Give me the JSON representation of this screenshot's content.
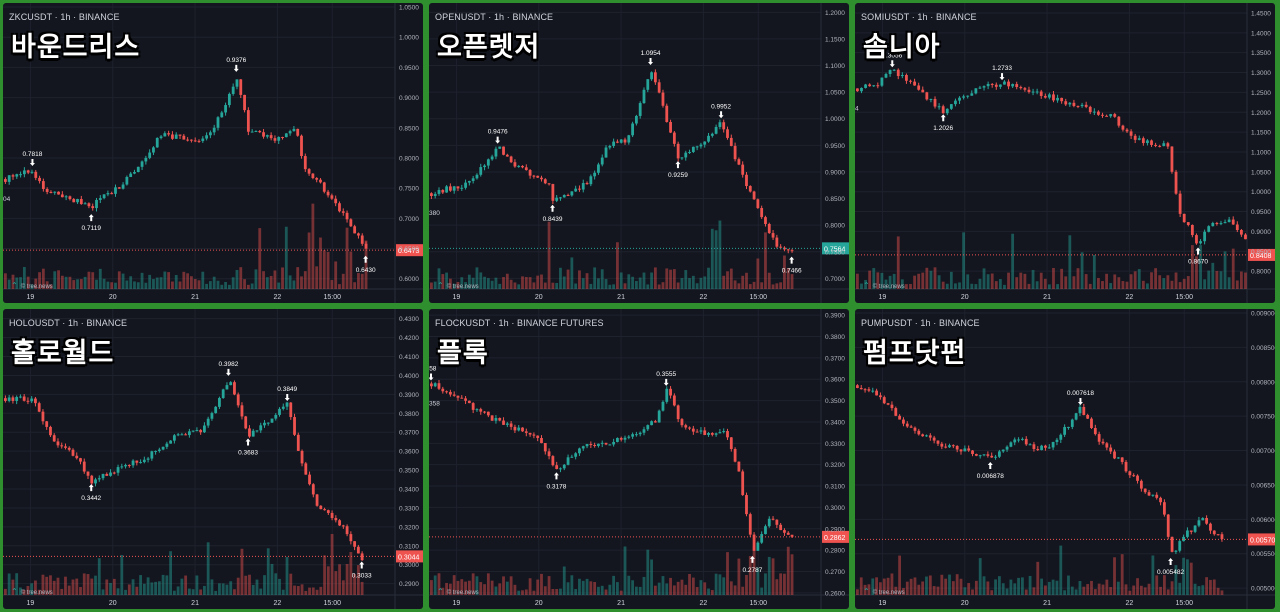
{
  "brand_text": "© tree.news",
  "colors": {
    "up": "#26a69a",
    "down": "#ef5350",
    "bg": "#13161f",
    "grid": "#1e222d",
    "text": "#b2b5be"
  },
  "chart_data": [
    {
      "type": "candlestick",
      "title": "ZKCUSDT · 1h · BINANCE",
      "korean_title": "바운드리스",
      "x_ticks": [
        "19",
        "20",
        "21",
        "22",
        "15:00"
      ],
      "y_ticks": [
        "1.0500",
        "1.0000",
        "0.9500",
        "0.9000",
        "0.8500",
        "0.8000",
        "0.7500",
        "0.7000",
        "0.6500",
        "0.6000"
      ],
      "ylim": [
        0.583,
        1.05
      ],
      "last_price": "0.6473",
      "last_price_value": 0.6473,
      "last_color": "#ef5350",
      "left_edge_label": "04",
      "path": [
        [
          0,
          0.765
        ],
        [
          0.07,
          0.78
        ],
        [
          0.1,
          0.745
        ],
        [
          0.22,
          0.72
        ],
        [
          0.3,
          0.758
        ],
        [
          0.35,
          0.795
        ],
        [
          0.4,
          0.84
        ],
        [
          0.5,
          0.825
        ],
        [
          0.55,
          0.87
        ],
        [
          0.59,
          0.935
        ],
        [
          0.62,
          0.845
        ],
        [
          0.7,
          0.83
        ],
        [
          0.74,
          0.85
        ],
        [
          0.76,
          0.79
        ],
        [
          0.86,
          0.71
        ],
        [
          0.92,
          0.647
        ]
      ],
      "annotations": [
        {
          "label": "0.7818",
          "x": 0.07,
          "value": 0.7818,
          "pos": "above"
        },
        {
          "label": "0.7119",
          "x": 0.22,
          "value": 0.7119,
          "pos": "below"
        },
        {
          "label": "0.9376",
          "x": 0.59,
          "value": 0.9376,
          "pos": "above"
        },
        {
          "label": "0.6430",
          "x": 0.92,
          "value": 0.643,
          "pos": "below"
        }
      ]
    },
    {
      "type": "candlestick",
      "title": "OPENUSDT · 1h · BINANCE",
      "korean_title": "오픈렛저",
      "x_ticks": [
        "19",
        "20",
        "21",
        "22",
        "15:00"
      ],
      "y_ticks": [
        "1.2000",
        "1.1500",
        "1.1000",
        "1.0500",
        "1.0000",
        "0.9500",
        "0.9000",
        "0.8500",
        "0.8000",
        "0.7500",
        "0.7000"
      ],
      "ylim": [
        0.68,
        1.21
      ],
      "last_price": "0.7564",
      "last_price_value": 0.7564,
      "last_color": "#26a69a",
      "left_edge_label": "380",
      "path": [
        [
          0,
          0.86
        ],
        [
          0.1,
          0.88
        ],
        [
          0.17,
          0.9476
        ],
        [
          0.22,
          0.91
        ],
        [
          0.3,
          0.88
        ],
        [
          0.31,
          0.8439
        ],
        [
          0.4,
          0.88
        ],
        [
          0.45,
          0.95
        ],
        [
          0.5,
          0.96
        ],
        [
          0.52,
          1.0
        ],
        [
          0.56,
          1.0954
        ],
        [
          0.6,
          1.0
        ],
        [
          0.63,
          0.9259
        ],
        [
          0.7,
          0.96
        ],
        [
          0.74,
          0.9952
        ],
        [
          0.8,
          0.88
        ],
        [
          0.88,
          0.76
        ],
        [
          0.92,
          0.7466
        ]
      ],
      "annotations": [
        {
          "label": "0.9476",
          "x": 0.17,
          "value": 0.9476,
          "pos": "above"
        },
        {
          "label": "0.8439",
          "x": 0.31,
          "value": 0.8439,
          "pos": "below"
        },
        {
          "label": "1.0954",
          "x": 0.56,
          "value": 1.0954,
          "pos": "above"
        },
        {
          "label": "0.9259",
          "x": 0.63,
          "value": 0.9259,
          "pos": "below"
        },
        {
          "label": "0.9952",
          "x": 0.74,
          "value": 0.9952,
          "pos": "above"
        },
        {
          "label": "0.7466",
          "x": 0.92,
          "value": 0.7466,
          "pos": "below"
        }
      ]
    },
    {
      "type": "candlestick",
      "title": "SOMIUSDT · 1h · BINANCE",
      "korean_title": "솜니아",
      "x_ticks": [
        "19",
        "20",
        "21",
        "22",
        "15:00"
      ],
      "y_ticks": [
        "1.4500",
        "1.4000",
        "1.3500",
        "1.3000",
        "1.2500",
        "1.2000",
        "1.1500",
        "1.1000",
        "1.0500",
        "1.0000",
        "0.9500",
        "0.9000",
        "0.8500",
        "0.8000"
      ],
      "ylim": [
        0.755,
        1.465
      ],
      "last_price": "0.8408",
      "last_price_value": 0.8408,
      "last_color": "#ef5350",
      "left_edge_label": "4",
      "path": [
        [
          0,
          1.26
        ],
        [
          0.05,
          1.27
        ],
        [
          0.09,
          1.3056
        ],
        [
          0.14,
          1.27
        ],
        [
          0.22,
          1.2026
        ],
        [
          0.3,
          1.26
        ],
        [
          0.37,
          1.2733
        ],
        [
          0.45,
          1.25
        ],
        [
          0.55,
          1.22
        ],
        [
          0.65,
          1.19
        ],
        [
          0.7,
          1.14
        ],
        [
          0.75,
          1.12
        ],
        [
          0.79,
          1.12
        ],
        [
          0.82,
          0.95
        ],
        [
          0.87,
          0.867
        ],
        [
          0.9,
          0.92
        ],
        [
          0.95,
          0.93
        ],
        [
          0.99,
          0.88
        ]
      ],
      "annotations": [
        {
          "label": "1.3056",
          "x": 0.09,
          "value": 1.3056,
          "pos": "above"
        },
        {
          "label": "1.2026",
          "x": 0.22,
          "value": 1.2026,
          "pos": "below"
        },
        {
          "label": "1.2733",
          "x": 0.37,
          "value": 1.2733,
          "pos": "above"
        },
        {
          "label": "0.8670",
          "x": 0.87,
          "value": 0.867,
          "pos": "below"
        }
      ]
    },
    {
      "type": "candlestick",
      "title": "HOLOUSDT · 1h · BINANCE",
      "korean_title": "홀로월드",
      "x_ticks": [
        "19",
        "20",
        "21",
        "22",
        "15:00"
      ],
      "y_ticks": [
        "0.4300",
        "0.4200",
        "0.4100",
        "0.4000",
        "0.3900",
        "0.3800",
        "0.3700",
        "0.3600",
        "0.3500",
        "0.3400",
        "0.3300",
        "0.3200",
        "0.3100",
        "0.3000",
        "0.2900"
      ],
      "ylim": [
        0.284,
        0.433
      ],
      "last_price": "0.3044",
      "last_price_value": 0.3044,
      "last_color": "#ef5350",
      "left_edge_label": "",
      "path": [
        [
          0,
          0.388
        ],
        [
          0.07,
          0.387
        ],
        [
          0.12,
          0.365
        ],
        [
          0.18,
          0.358
        ],
        [
          0.22,
          0.3442
        ],
        [
          0.3,
          0.352
        ],
        [
          0.35,
          0.355
        ],
        [
          0.43,
          0.368
        ],
        [
          0.5,
          0.37
        ],
        [
          0.57,
          0.3982
        ],
        [
          0.62,
          0.3683
        ],
        [
          0.67,
          0.376
        ],
        [
          0.72,
          0.3849
        ],
        [
          0.76,
          0.35
        ],
        [
          0.8,
          0.33
        ],
        [
          0.86,
          0.32
        ],
        [
          0.91,
          0.3033
        ]
      ],
      "annotations": [
        {
          "label": "0.3442",
          "x": 0.22,
          "value": 0.3442,
          "pos": "below"
        },
        {
          "label": "0.3982",
          "x": 0.57,
          "value": 0.3982,
          "pos": "above"
        },
        {
          "label": "0.3683",
          "x": 0.62,
          "value": 0.3683,
          "pos": "below"
        },
        {
          "label": "0.3849",
          "x": 0.72,
          "value": 0.3849,
          "pos": "above"
        },
        {
          "label": "0.3033",
          "x": 0.91,
          "value": 0.3033,
          "pos": "below"
        }
      ]
    },
    {
      "type": "candlestick",
      "title": "FLOCKUSDT · 1h · BINANCE FUTURES",
      "korean_title": "플록",
      "x_ticks": [
        "19",
        "20",
        "21",
        "22",
        "15:00"
      ],
      "y_ticks": [
        "0.3900",
        "0.3800",
        "0.3700",
        "0.3600",
        "0.3500",
        "0.3400",
        "0.3300",
        "0.3200",
        "0.3100",
        "0.3000",
        "0.2900",
        "0.2800",
        "0.2700",
        "0.2600"
      ],
      "ylim": [
        0.259,
        0.391
      ],
      "last_price": "0.2862",
      "last_price_value": 0.2862,
      "last_color": "#ef5350",
      "left_edge_label": "358",
      "path": [
        [
          0,
          0.358
        ],
        [
          0.06,
          0.352
        ],
        [
          0.13,
          0.344
        ],
        [
          0.2,
          0.338
        ],
        [
          0.27,
          0.334
        ],
        [
          0.32,
          0.3178
        ],
        [
          0.38,
          0.328
        ],
        [
          0.45,
          0.33
        ],
        [
          0.52,
          0.335
        ],
        [
          0.57,
          0.34
        ],
        [
          0.6,
          0.3555
        ],
        [
          0.64,
          0.338
        ],
        [
          0.7,
          0.335
        ],
        [
          0.75,
          0.335
        ],
        [
          0.78,
          0.32
        ],
        [
          0.81,
          0.29
        ],
        [
          0.82,
          0.2787
        ],
        [
          0.86,
          0.295
        ],
        [
          0.92,
          0.286
        ]
      ],
      "annotations": [
        {
          "label": "358",
          "x": 0.0,
          "value": 0.358,
          "pos": "above"
        },
        {
          "label": "0.3178",
          "x": 0.32,
          "value": 0.3178,
          "pos": "below"
        },
        {
          "label": "0.3555",
          "x": 0.6,
          "value": 0.3555,
          "pos": "above"
        },
        {
          "label": "0.2787",
          "x": 0.82,
          "value": 0.2787,
          "pos": "below"
        }
      ]
    },
    {
      "type": "candlestick",
      "title": "PUMPUSDT · 1h · BINANCE",
      "korean_title": "펌프닷펀",
      "x_ticks": [
        "19",
        "20",
        "21",
        "22",
        "15:00"
      ],
      "y_ticks": [
        "0.009000",
        "0.008500",
        "0.008000",
        "0.007500",
        "0.007000",
        "0.006500",
        "0.006000",
        "0.005500",
        "0.005000"
      ],
      "ylim": [
        0.0049,
        0.009
      ],
      "last_price": "0.005708",
      "last_price_value": 0.005708,
      "last_color": "#ef5350",
      "left_edge_label": "",
      "path": [
        [
          0,
          0.00795
        ],
        [
          0.05,
          0.0078
        ],
        [
          0.12,
          0.0074
        ],
        [
          0.2,
          0.0071
        ],
        [
          0.28,
          0.007
        ],
        [
          0.34,
          0.006878
        ],
        [
          0.42,
          0.0072
        ],
        [
          0.45,
          0.007
        ],
        [
          0.5,
          0.0071
        ],
        [
          0.57,
          0.007618
        ],
        [
          0.62,
          0.0071
        ],
        [
          0.66,
          0.0069
        ],
        [
          0.72,
          0.0065
        ],
        [
          0.78,
          0.0062
        ],
        [
          0.8,
          0.005482
        ],
        [
          0.84,
          0.0058
        ],
        [
          0.88,
          0.006
        ],
        [
          0.93,
          0.0057
        ]
      ],
      "annotations": [
        {
          "label": "0.006878",
          "x": 0.34,
          "value": 0.006878,
          "pos": "below"
        },
        {
          "label": "0.007618",
          "x": 0.57,
          "value": 0.007618,
          "pos": "above"
        },
        {
          "label": "0.005482",
          "x": 0.8,
          "value": 0.005482,
          "pos": "below"
        }
      ]
    }
  ]
}
